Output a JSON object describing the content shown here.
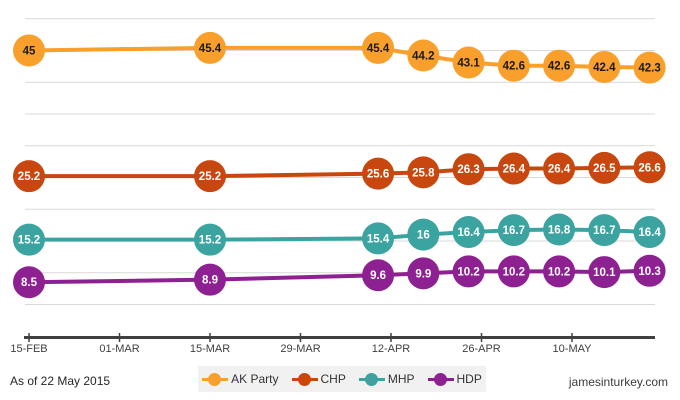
{
  "chart_data": {
    "type": "line",
    "grid": "horizontal",
    "legend_position": "bottom-center",
    "point_labels_shown": true,
    "x_axis": {
      "tick_labels": [
        "15-FEB",
        "01-MAR",
        "15-MAR",
        "29-MAR",
        "12-APR",
        "26-APR",
        "10-MAY"
      ],
      "tick_days": [
        0,
        14,
        28,
        42,
        56,
        70,
        84
      ]
    },
    "y_axis": {
      "gridline_values": [
        50,
        45,
        40,
        35,
        30,
        25,
        20,
        15,
        10,
        5
      ],
      "ylim": [
        2.5,
        52.5
      ]
    },
    "point_days": [
      0,
      28,
      54,
      61,
      68,
      75,
      82,
      89,
      96
    ],
    "series": [
      {
        "name": "AK Party",
        "color": "#F8A02B",
        "label_text_color": "#1a1a1a",
        "values": [
          45,
          45.4,
          45.4,
          44.2,
          43.1,
          42.6,
          42.6,
          42.4,
          42.3
        ]
      },
      {
        "name": "CHP",
        "color": "#C7470E",
        "label_text_color": "#ffffff",
        "values": [
          25.2,
          25.2,
          25.6,
          25.8,
          26.3,
          26.4,
          26.4,
          26.5,
          26.6
        ]
      },
      {
        "name": "MHP",
        "color": "#3BA4A0",
        "label_text_color": "#ffffff",
        "values": [
          15.2,
          15.2,
          15.4,
          16,
          16.4,
          16.7,
          16.8,
          16.7,
          16.4
        ]
      },
      {
        "name": "HDP",
        "color": "#8E2191",
        "label_text_color": "#ffffff",
        "values": [
          8.5,
          8.9,
          9.6,
          9.9,
          10.2,
          10.2,
          10.2,
          10.1,
          10.3
        ]
      }
    ]
  },
  "footer": {
    "as_of": "As of 22 May 2015",
    "source": "jamesinturkey.com"
  },
  "colors": {
    "background": "#FFFFFF",
    "gridline": "#D9D9D9",
    "axis": "#404040",
    "legend_bg": "#F1F1F1"
  }
}
